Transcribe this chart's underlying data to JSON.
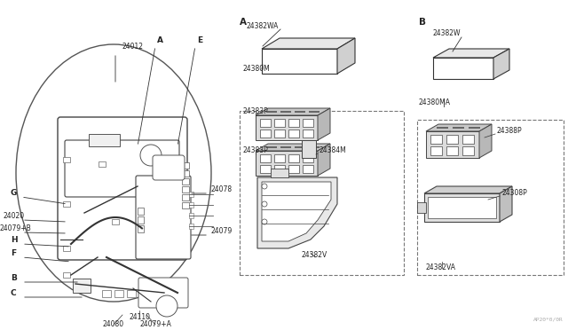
{
  "bg_color": "#ffffff",
  "line_color": "#333333",
  "text_color": "#222222",
  "watermark": "AP20*0/0R",
  "section_A_label": "A",
  "section_B_label": "B",
  "left_labels": {
    "p24012": "24012",
    "label_A": "A",
    "label_E": "E",
    "label_G": "G",
    "label_H": "H",
    "label_F": "F",
    "label_B": "B",
    "label_C": "C",
    "p24020": "24020",
    "p24079B": "24079+B",
    "p24078": "24078",
    "p24079": "24079",
    "p24110": "24110",
    "p24080": "24080",
    "p24079A": "24079+A"
  },
  "center_labels": {
    "p24382WA": "24382WA",
    "p24380M": "24380M",
    "p24383P_top": "24383P",
    "p24383P_bot": "24383P",
    "p24384M": "24384M",
    "p24382V": "24382V"
  },
  "right_labels": {
    "p24382W": "24382W",
    "p24380MA": "24380MA",
    "p24388P": "24388P",
    "p24308P": "24308P",
    "p24382VA": "24382VA"
  }
}
